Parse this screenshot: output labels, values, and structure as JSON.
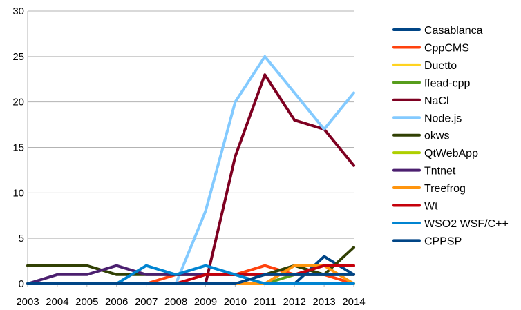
{
  "chart_data": {
    "type": "line",
    "title": "",
    "xlabel": "",
    "ylabel": "",
    "x": [
      "2003",
      "2004",
      "2005",
      "2006",
      "2007",
      "2008",
      "2009",
      "2010",
      "2011",
      "2012",
      "2013",
      "2014"
    ],
    "ylim": [
      0,
      30
    ],
    "yticks": [
      "0",
      "5",
      "10",
      "15",
      "20",
      "25",
      "30"
    ],
    "grid": "horizontal",
    "legend": "right",
    "series": [
      {
        "name": "Casablanca",
        "color": "#004586",
        "values": [
          0,
          0,
          0,
          0,
          0,
          0,
          0,
          0,
          0,
          0,
          3,
          1
        ]
      },
      {
        "name": "CppCMS",
        "color": "#ff420e",
        "values": [
          0,
          0,
          0,
          0,
          0,
          1,
          1,
          1,
          2,
          1,
          1,
          0
        ]
      },
      {
        "name": "Duetto",
        "color": "#ffd320",
        "values": [
          0,
          0,
          0,
          0,
          0,
          0,
          0,
          0,
          0,
          0,
          0,
          0
        ]
      },
      {
        "name": "ffead-cpp",
        "color": "#579d1c",
        "values": [
          0,
          0,
          0,
          0,
          0,
          0,
          0,
          0,
          0,
          1,
          1,
          1
        ]
      },
      {
        "name": "NaCl",
        "color": "#7e0021",
        "values": [
          0,
          0,
          0,
          0,
          0,
          0,
          0,
          14,
          23,
          18,
          17,
          13
        ]
      },
      {
        "name": "Node.js",
        "color": "#83caff",
        "values": [
          0,
          0,
          0,
          0,
          0,
          0,
          8,
          20,
          25,
          21,
          17,
          21
        ]
      },
      {
        "name": "okws",
        "color": "#314004",
        "values": [
          2,
          2,
          2,
          1,
          1,
          1,
          1,
          1,
          1,
          2,
          1,
          4
        ]
      },
      {
        "name": "QtWebApp",
        "color": "#aecf00",
        "values": [
          0,
          0,
          0,
          0,
          0,
          0,
          0,
          0,
          0,
          0,
          0,
          0
        ]
      },
      {
        "name": "Tntnet",
        "color": "#4b1f6f",
        "values": [
          0,
          1,
          1,
          2,
          1,
          1,
          1,
          1,
          1,
          1,
          1,
          1
        ]
      },
      {
        "name": "Treefrog",
        "color": "#ff950e",
        "values": [
          0,
          0,
          0,
          0,
          0,
          0,
          0,
          0,
          0,
          2,
          2,
          0
        ]
      },
      {
        "name": "Wt",
        "color": "#c5000b",
        "values": [
          0,
          0,
          0,
          0,
          0,
          0,
          1,
          1,
          1,
          1,
          2,
          2
        ]
      },
      {
        "name": "WSO2 WSF/C++",
        "color": "#0084d1",
        "values": [
          0,
          0,
          0,
          0,
          2,
          1,
          2,
          1,
          0,
          0,
          0,
          0
        ]
      },
      {
        "name": "CPPSP",
        "color": "#004586",
        "values": [
          0,
          0,
          0,
          0,
          0,
          0,
          0,
          0,
          1,
          1,
          1,
          1
        ]
      }
    ]
  }
}
